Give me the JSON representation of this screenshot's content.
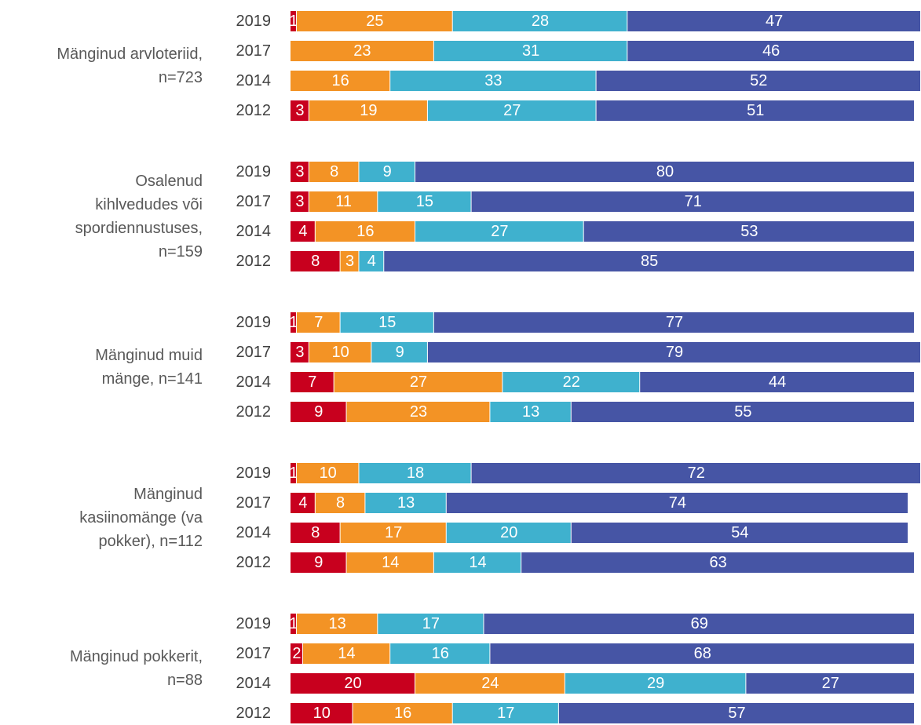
{
  "chart_data": {
    "type": "bar",
    "orientation": "horizontal",
    "stacked": true,
    "xlim": [
      0,
      101
    ],
    "groups": [
      {
        "label": [
          "Mänginud arvloteriid,",
          "n=723"
        ],
        "categories": [
          "2019",
          "2017",
          "2014",
          "2012"
        ],
        "series": [
          {
            "color": "#c8001e",
            "values": [
              1,
              null,
              null,
              3
            ]
          },
          {
            "color": "#f39325",
            "values": [
              25,
              23,
              16,
              19
            ]
          },
          {
            "color": "#3fb1ce",
            "values": [
              28,
              31,
              33,
              27
            ]
          },
          {
            "color": "#4655a5",
            "values": [
              47,
              46,
              52,
              51
            ]
          }
        ]
      },
      {
        "label": [
          "Osalenud",
          "kihlvedudes või",
          "spordiennustuses,",
          "n=159"
        ],
        "categories": [
          "2019",
          "2017",
          "2014",
          "2012"
        ],
        "series": [
          {
            "color": "#c8001e",
            "values": [
              3,
              3,
              4,
              8
            ]
          },
          {
            "color": "#f39325",
            "values": [
              8,
              11,
              16,
              3
            ]
          },
          {
            "color": "#3fb1ce",
            "values": [
              9,
              15,
              27,
              4
            ]
          },
          {
            "color": "#4655a5",
            "values": [
              80,
              71,
              53,
              85
            ]
          }
        ]
      },
      {
        "label": [
          "Mänginud muid",
          "mänge, n=141"
        ],
        "categories": [
          "2019",
          "2017",
          "2014",
          "2012"
        ],
        "series": [
          {
            "color": "#c8001e",
            "values": [
              1,
              3,
              7,
              9
            ]
          },
          {
            "color": "#f39325",
            "values": [
              7,
              10,
              27,
              23
            ]
          },
          {
            "color": "#3fb1ce",
            "values": [
              15,
              9,
              22,
              13
            ]
          },
          {
            "color": "#4655a5",
            "values": [
              77,
              79,
              44,
              55
            ]
          }
        ]
      },
      {
        "label": [
          "Mänginud",
          "kasiinomänge (va",
          "pokker), n=112"
        ],
        "categories": [
          "2019",
          "2017",
          "2014",
          "2012"
        ],
        "series": [
          {
            "color": "#c8001e",
            "values": [
              1,
              4,
              8,
              9
            ]
          },
          {
            "color": "#f39325",
            "values": [
              10,
              8,
              17,
              14
            ]
          },
          {
            "color": "#3fb1ce",
            "values": [
              18,
              13,
              20,
              14
            ]
          },
          {
            "color": "#4655a5",
            "values": [
              72,
              74,
              54,
              63
            ]
          }
        ]
      },
      {
        "label": [
          "Mänginud pokkerit,",
          "n=88"
        ],
        "categories": [
          "2019",
          "2017",
          "2014",
          "2012"
        ],
        "series": [
          {
            "color": "#c8001e",
            "values": [
              1,
              2,
              20,
              10
            ]
          },
          {
            "color": "#f39325",
            "values": [
              13,
              14,
              24,
              16
            ]
          },
          {
            "color": "#3fb1ce",
            "values": [
              17,
              16,
              29,
              17
            ]
          },
          {
            "color": "#4655a5",
            "values": [
              69,
              68,
              27,
              57
            ]
          }
        ]
      }
    ]
  }
}
